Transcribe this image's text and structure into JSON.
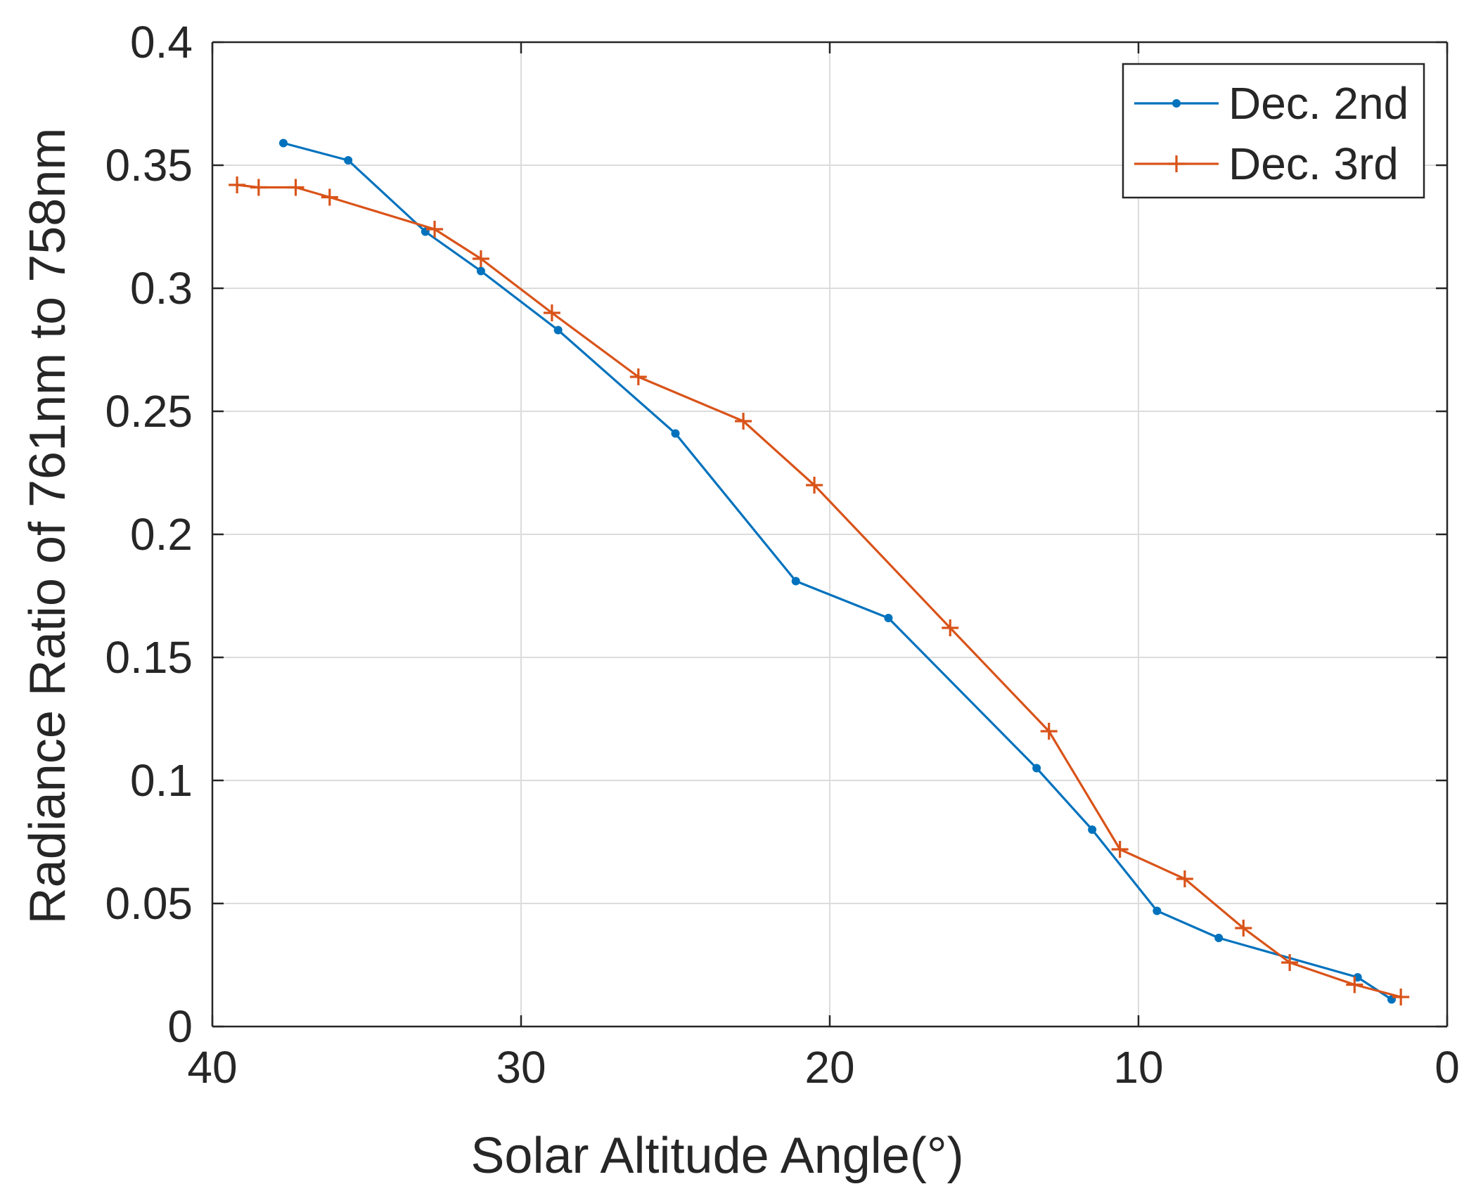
{
  "chart_data": {
    "type": "line",
    "title": "",
    "xlabel": "Solar Altitude Angle(°)",
    "ylabel": "Radiance Ratio of 761nm to 758nm",
    "xlim": [
      40,
      0
    ],
    "ylim": [
      0,
      0.4
    ],
    "x_reversed": true,
    "grid": true,
    "legend_position": "top-right",
    "x_ticks": [
      40,
      30,
      20,
      10,
      0
    ],
    "x_tick_labels": [
      "40",
      "30",
      "20",
      "10",
      "0"
    ],
    "y_ticks": [
      0,
      0.05,
      0.1,
      0.15,
      0.2,
      0.25,
      0.3,
      0.35,
      0.4
    ],
    "y_tick_labels": [
      "0",
      "0.05",
      "0.1",
      "0.15",
      "0.2",
      "0.25",
      "0.3",
      "0.35",
      "0.4"
    ],
    "series": [
      {
        "name": "Dec. 2nd",
        "color": "#0072BD",
        "marker": "dot",
        "x": [
          37.7,
          35.6,
          33.1,
          31.3,
          28.8,
          25.0,
          21.1,
          18.1,
          13.3,
          11.5,
          9.4,
          7.4,
          2.9,
          1.8
        ],
        "y": [
          0.359,
          0.352,
          0.323,
          0.307,
          0.283,
          0.241,
          0.181,
          0.166,
          0.105,
          0.08,
          0.047,
          0.036,
          0.02,
          0.011
        ]
      },
      {
        "name": "Dec. 3rd",
        "color": "#D95319",
        "marker": "plus",
        "x": [
          39.2,
          38.5,
          37.3,
          36.2,
          32.8,
          31.3,
          29.0,
          26.2,
          22.8,
          20.5,
          16.1,
          12.9,
          10.6,
          8.5,
          6.6,
          5.1,
          3.0,
          1.5
        ],
        "y": [
          0.342,
          0.341,
          0.341,
          0.337,
          0.324,
          0.312,
          0.29,
          0.264,
          0.246,
          0.22,
          0.162,
          0.12,
          0.072,
          0.06,
          0.04,
          0.026,
          0.017,
          0.012
        ]
      }
    ]
  }
}
